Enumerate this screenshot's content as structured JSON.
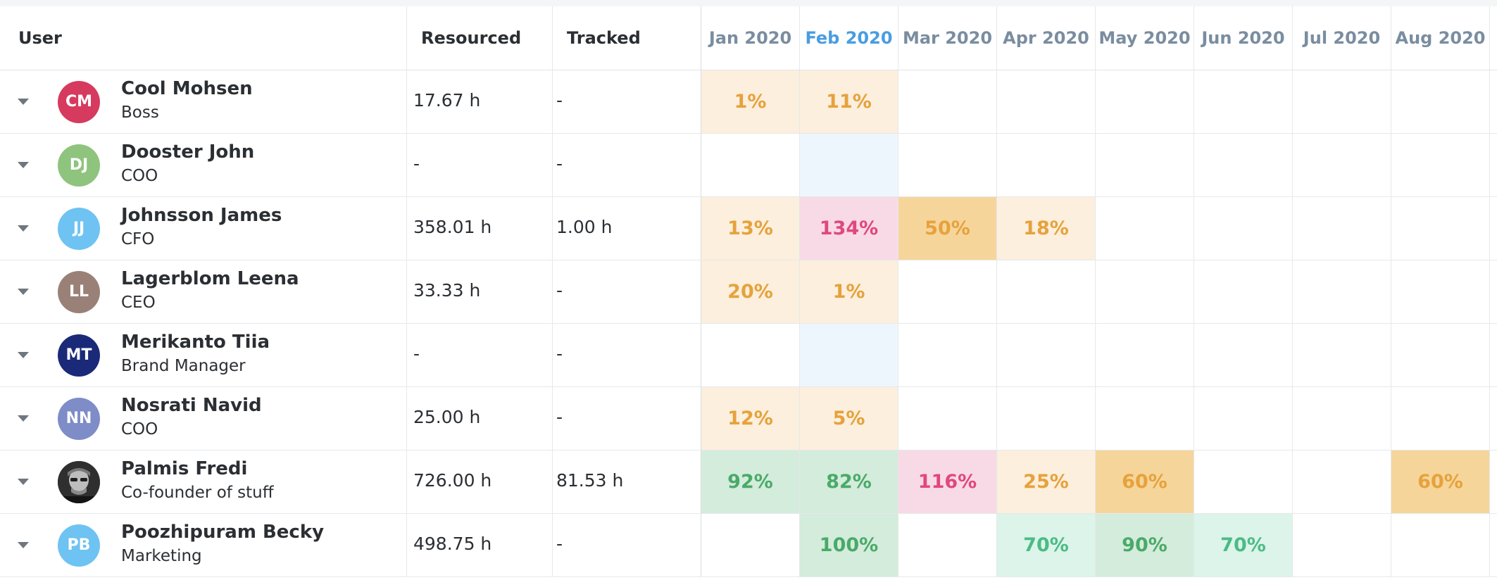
{
  "columns": {
    "user": "User",
    "resourced": "Resourced",
    "tracked": "Tracked",
    "months": [
      "Jan 2020",
      "Feb 2020",
      "Mar 2020",
      "Apr 2020",
      "May 2020",
      "Jun 2020",
      "Jul 2020",
      "Aug 2020"
    ],
    "current_month_index": 1
  },
  "palette": {
    "orange_light_bg": "#fcefdd",
    "orange_bg": "#f6d59b",
    "orange_text": "#e6a23c",
    "pink_bg": "#f8dae6",
    "pink_text": "#e0487b",
    "green_bg": "#d4ecdc",
    "green_text": "#4aaa68",
    "mint_bg": "#dcf4ea",
    "mint_text": "#4cbb86",
    "current_month_bg": "#eef6fd",
    "current_month_text": "#4a9de0"
  },
  "users": [
    {
      "name": "Cool Mohsen",
      "role": "Boss",
      "initials": "CM",
      "avatar_color": "#d73a5f",
      "avatar_type": "initials",
      "resourced": "17.67 h",
      "tracked": "-",
      "months": [
        "1%",
        "11%",
        "",
        "",
        "",
        "",
        "",
        ""
      ],
      "month_styles": [
        "ol",
        "ol",
        "",
        "",
        "",
        "",
        "",
        ""
      ]
    },
    {
      "name": "Dooster John",
      "role": "COO",
      "initials": "DJ",
      "avatar_color": "#8ec47e",
      "avatar_type": "initials",
      "resourced": "-",
      "tracked": "-",
      "months": [
        "",
        "",
        "",
        "",
        "",
        "",
        "",
        ""
      ],
      "month_styles": [
        "",
        "",
        "",
        "",
        "",
        "",
        "",
        ""
      ]
    },
    {
      "name": "Johnsson James",
      "role": "CFO",
      "initials": "JJ",
      "avatar_color": "#6ec3f2",
      "avatar_type": "initials",
      "resourced": "358.01 h",
      "tracked": "1.00 h",
      "months": [
        "13%",
        "134%",
        "50%",
        "18%",
        "",
        "",
        "",
        ""
      ],
      "month_styles": [
        "ol",
        "pk",
        "od",
        "ol",
        "",
        "",
        "",
        ""
      ]
    },
    {
      "name": "Lagerblom Leena",
      "role": "CEO",
      "initials": "LL",
      "avatar_color": "#9a8178",
      "avatar_type": "initials",
      "resourced": "33.33 h",
      "tracked": "-",
      "months": [
        "20%",
        "1%",
        "",
        "",
        "",
        "",
        "",
        ""
      ],
      "month_styles": [
        "ol",
        "ol",
        "",
        "",
        "",
        "",
        "",
        ""
      ]
    },
    {
      "name": "Merikanto Tiia",
      "role": "Brand Manager",
      "initials": "MT",
      "avatar_color": "#1b2a78",
      "avatar_type": "initials",
      "resourced": "-",
      "tracked": "-",
      "months": [
        "",
        "",
        "",
        "",
        "",
        "",
        "",
        ""
      ],
      "month_styles": [
        "",
        "",
        "",
        "",
        "",
        "",
        "",
        ""
      ]
    },
    {
      "name": "Nosrati Navid",
      "role": "COO",
      "initials": "NN",
      "avatar_color": "#7e8cc8",
      "avatar_type": "initials",
      "resourced": "25.00 h",
      "tracked": "-",
      "months": [
        "12%",
        "5%",
        "",
        "",
        "",
        "",
        "",
        ""
      ],
      "month_styles": [
        "ol",
        "ol",
        "",
        "",
        "",
        "",
        "",
        ""
      ]
    },
    {
      "name": "Palmis Fredi",
      "role": "Co-founder of stuff",
      "initials": "",
      "avatar_color": "#3a3a3a",
      "avatar_type": "photo",
      "resourced": "726.00 h",
      "tracked": "81.53 h",
      "months": [
        "92%",
        "82%",
        "116%",
        "25%",
        "60%",
        "",
        "",
        "60%"
      ],
      "month_styles": [
        "gr",
        "gr",
        "pk",
        "ol",
        "od",
        "",
        "",
        "od"
      ]
    },
    {
      "name": "Poozhipuram Becky",
      "role": "Marketing",
      "initials": "PB",
      "avatar_color": "#6ec3f2",
      "avatar_type": "initials",
      "resourced": "498.75 h",
      "tracked": "-",
      "months": [
        "",
        "100%",
        "",
        "70%",
        "90%",
        "70%",
        "",
        ""
      ],
      "month_styles": [
        "",
        "gr",
        "",
        "mt",
        "gr",
        "mt",
        "",
        ""
      ]
    }
  ]
}
